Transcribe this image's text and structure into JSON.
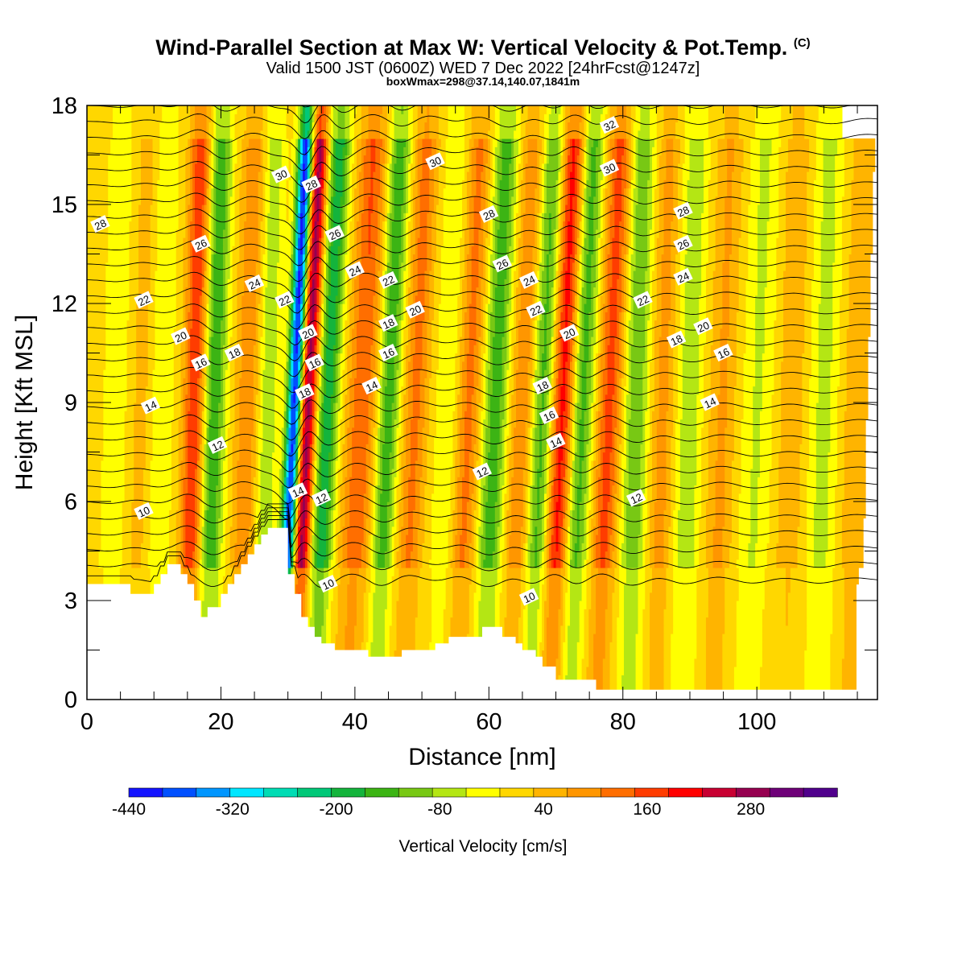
{
  "titles": {
    "main": "Wind-Parallel Section at Max W: Vertical Velocity & Pot.Temp.",
    "main_tag": "(C)",
    "valid": "Valid 1500 JST (0600Z) WED 7 Dec 2022 [24hrFcst@1247z]",
    "box": "boxWmax=298@37.14,140.07,1841m"
  },
  "chart_data": {
    "type": "heatmap",
    "title": "Wind-Parallel Section at Max W: Vertical Velocity & Pot.Temp.",
    "xlabel": "Distance [nm]",
    "ylabel": "Height [Kft MSL]",
    "xlim": [
      0,
      118
    ],
    "ylim": [
      0,
      18
    ],
    "x_ticks": [
      0,
      20,
      40,
      60,
      80,
      100
    ],
    "y_ticks": [
      0,
      3,
      6,
      9,
      12,
      15,
      18
    ],
    "grid": false,
    "colorbar": {
      "label": "Vertical Velocity [cm/s]",
      "tick_labels": [
        "-440",
        "-320",
        "-200",
        "-80",
        "40",
        "160",
        "280"
      ],
      "tick_values": [
        -440,
        -320,
        -200,
        -80,
        40,
        160,
        280
      ],
      "vmin": -440,
      "vmax": 380,
      "step": 40,
      "colors": [
        "#1414ff",
        "#0050ff",
        "#0096ff",
        "#00e6ff",
        "#00dcb4",
        "#00c878",
        "#14b43c",
        "#3cb414",
        "#78c814",
        "#b4e614",
        "#ffff00",
        "#ffd700",
        "#ffb400",
        "#ff9600",
        "#ff6e00",
        "#ff3c00",
        "#ff0000",
        "#c80032",
        "#960050",
        "#6e0078",
        "#50008c"
      ]
    },
    "terrain_kft": [
      [
        0,
        3.5
      ],
      [
        6.5,
        3.5
      ],
      [
        6.5,
        3.2
      ],
      [
        10,
        3.2
      ],
      [
        10,
        3.5
      ],
      [
        11,
        3.5
      ],
      [
        11,
        3.8
      ],
      [
        12,
        3.8
      ],
      [
        12,
        4.1
      ],
      [
        14,
        4.1
      ],
      [
        14,
        3.8
      ],
      [
        15,
        3.8
      ],
      [
        15,
        3.5
      ],
      [
        16,
        3.5
      ],
      [
        16,
        3.0
      ],
      [
        17,
        3.0
      ],
      [
        17,
        2.5
      ],
      [
        18,
        2.5
      ],
      [
        18,
        2.8
      ],
      [
        20,
        2.8
      ],
      [
        20,
        3.2
      ],
      [
        21,
        3.2
      ],
      [
        21,
        3.5
      ],
      [
        22,
        3.5
      ],
      [
        22,
        3.8
      ],
      [
        23,
        3.8
      ],
      [
        23,
        4.1
      ],
      [
        24,
        4.1
      ],
      [
        24,
        4.4
      ],
      [
        25,
        4.4
      ],
      [
        25,
        4.7
      ],
      [
        26,
        4.7
      ],
      [
        26,
        5.0
      ],
      [
        27,
        5.0
      ],
      [
        27,
        5.2
      ],
      [
        30,
        5.2
      ],
      [
        30,
        3.8
      ],
      [
        31,
        3.8
      ],
      [
        31,
        3.2
      ],
      [
        32,
        3.2
      ],
      [
        32,
        2.5
      ],
      [
        33,
        2.5
      ],
      [
        33,
        2.2
      ],
      [
        34,
        2.2
      ],
      [
        34,
        1.9
      ],
      [
        35,
        1.9
      ],
      [
        35,
        1.7
      ],
      [
        37,
        1.7
      ],
      [
        37,
        1.5
      ],
      [
        42,
        1.5
      ],
      [
        42,
        1.3
      ],
      [
        47,
        1.3
      ],
      [
        47,
        1.5
      ],
      [
        52,
        1.5
      ],
      [
        52,
        1.7
      ],
      [
        54,
        1.7
      ],
      [
        54,
        1.9
      ],
      [
        59,
        1.9
      ],
      [
        59,
        2.2
      ],
      [
        62,
        2.2
      ],
      [
        62,
        1.9
      ],
      [
        64,
        1.9
      ],
      [
        64,
        1.7
      ],
      [
        65,
        1.7
      ],
      [
        65,
        1.5
      ],
      [
        67,
        1.5
      ],
      [
        67,
        1.3
      ],
      [
        68,
        1.3
      ],
      [
        68,
        1.0
      ],
      [
        70,
        1.0
      ],
      [
        70,
        0.6
      ],
      [
        76,
        0.6
      ],
      [
        76,
        0.3
      ],
      [
        118,
        0.3
      ]
    ],
    "w_bands": [
      {
        "x": 4,
        "amp": -40,
        "width": 1.5
      },
      {
        "x": 8,
        "amp": 40,
        "width": 1.5
      },
      {
        "x": 11,
        "amp": -40,
        "width": 1.5
      },
      {
        "x": 16,
        "amp": 180,
        "width": 1.6
      },
      {
        "x": 19,
        "amp": -160,
        "width": 1.6
      },
      {
        "x": 24,
        "amp": 100,
        "width": 1.8
      },
      {
        "x": 27,
        "amp": -80,
        "width": 1.5
      },
      {
        "x": 31,
        "amp": -440,
        "width": 1.1
      },
      {
        "x": 33,
        "amp": 300,
        "width": 1.3
      },
      {
        "x": 36,
        "amp": -200,
        "width": 1.6
      },
      {
        "x": 41,
        "amp": 150,
        "width": 2.2
      },
      {
        "x": 45,
        "amp": -160,
        "width": 1.6
      },
      {
        "x": 49,
        "amp": 120,
        "width": 1.8
      },
      {
        "x": 54,
        "amp": -40,
        "width": 2.0
      },
      {
        "x": 57,
        "amp": 120,
        "width": 1.8
      },
      {
        "x": 61,
        "amp": -150,
        "width": 1.8
      },
      {
        "x": 65,
        "amp": 100,
        "width": 1.8
      },
      {
        "x": 68,
        "amp": -140,
        "width": 1.6
      },
      {
        "x": 71,
        "amp": 200,
        "width": 1.6
      },
      {
        "x": 74,
        "amp": -140,
        "width": 1.6
      },
      {
        "x": 78,
        "amp": 160,
        "width": 1.8
      },
      {
        "x": 82,
        "amp": -120,
        "width": 1.8
      },
      {
        "x": 86,
        "amp": 80,
        "width": 1.8
      },
      {
        "x": 90,
        "amp": -80,
        "width": 1.8
      },
      {
        "x": 95,
        "amp": 80,
        "width": 2.0
      },
      {
        "x": 100,
        "amp": -60,
        "width": 2.0
      },
      {
        "x": 105,
        "amp": 60,
        "width": 2.0
      },
      {
        "x": 110,
        "amp": -60,
        "width": 2.0
      },
      {
        "x": 115,
        "amp": 60,
        "width": 2.0
      }
    ],
    "theta_contour_labels": [
      {
        "label": "28",
        "x": 2,
        "y": 14.4
      },
      {
        "label": "30",
        "x": 29,
        "y": 15.9
      },
      {
        "label": "28",
        "x": 33.5,
        "y": 15.6
      },
      {
        "label": "26",
        "x": 17,
        "y": 13.8
      },
      {
        "label": "26",
        "x": 37,
        "y": 14.1
      },
      {
        "label": "24",
        "x": 25,
        "y": 12.6
      },
      {
        "label": "24",
        "x": 40,
        "y": 13.0
      },
      {
        "label": "22",
        "x": 8.5,
        "y": 12.1
      },
      {
        "label": "22",
        "x": 29.5,
        "y": 12.1
      },
      {
        "label": "22",
        "x": 45,
        "y": 12.7
      },
      {
        "label": "20",
        "x": 14,
        "y": 11.0
      },
      {
        "label": "20",
        "x": 33,
        "y": 11.1
      },
      {
        "label": "20",
        "x": 49,
        "y": 11.8
      },
      {
        "label": "18",
        "x": 22,
        "y": 10.5
      },
      {
        "label": "18",
        "x": 45,
        "y": 11.4
      },
      {
        "label": "16",
        "x": 17,
        "y": 10.2
      },
      {
        "label": "16",
        "x": 34,
        "y": 10.2
      },
      {
        "label": "16",
        "x": 45,
        "y": 10.5
      },
      {
        "label": "18",
        "x": 32.5,
        "y": 9.3
      },
      {
        "label": "14",
        "x": 9.5,
        "y": 8.9
      },
      {
        "label": "14",
        "x": 42.5,
        "y": 9.5
      },
      {
        "label": "12",
        "x": 19.5,
        "y": 7.7
      },
      {
        "label": "14",
        "x": 31.5,
        "y": 6.3
      },
      {
        "label": "12",
        "x": 35,
        "y": 6.1
      },
      {
        "label": "10",
        "x": 8.5,
        "y": 5.7
      },
      {
        "label": "10",
        "x": 36,
        "y": 3.5
      },
      {
        "label": "30",
        "x": 52,
        "y": 16.3
      },
      {
        "label": "28",
        "x": 60,
        "y": 14.7
      },
      {
        "label": "26",
        "x": 62,
        "y": 13.2
      },
      {
        "label": "24",
        "x": 66,
        "y": 12.7
      },
      {
        "label": "22",
        "x": 67,
        "y": 11.8
      },
      {
        "label": "20",
        "x": 72,
        "y": 11.1
      },
      {
        "label": "18",
        "x": 68,
        "y": 9.5
      },
      {
        "label": "16",
        "x": 69,
        "y": 8.6
      },
      {
        "label": "14",
        "x": 70,
        "y": 7.8
      },
      {
        "label": "12",
        "x": 59,
        "y": 6.9
      },
      {
        "label": "10",
        "x": 66,
        "y": 3.1
      },
      {
        "label": "32",
        "x": 78,
        "y": 17.4
      },
      {
        "label": "30",
        "x": 78,
        "y": 16.1
      },
      {
        "label": "28",
        "x": 89,
        "y": 14.8
      },
      {
        "label": "26",
        "x": 89,
        "y": 13.8
      },
      {
        "label": "24",
        "x": 89,
        "y": 12.8
      },
      {
        "label": "22",
        "x": 83,
        "y": 12.1
      },
      {
        "label": "18",
        "x": 88,
        "y": 10.9
      },
      {
        "label": "20",
        "x": 92,
        "y": 11.3
      },
      {
        "label": "16",
        "x": 95,
        "y": 10.5
      },
      {
        "label": "14",
        "x": 93,
        "y": 9.0
      },
      {
        "label": "12",
        "x": 82,
        "y": 6.1
      }
    ]
  }
}
